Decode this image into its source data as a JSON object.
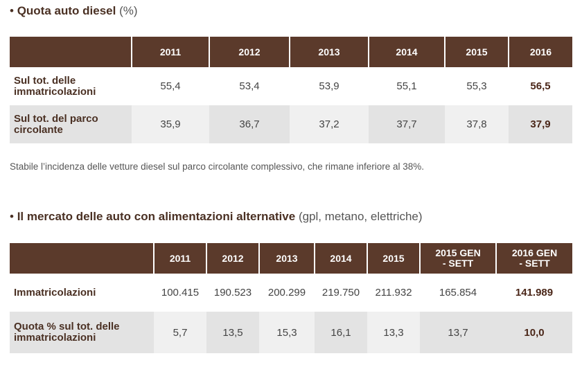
{
  "diesel": {
    "title_bold": "Quota auto diesel",
    "title_light": "(%)",
    "years": [
      "2011",
      "2012",
      "2013",
      "2014",
      "2015",
      "2016"
    ],
    "rows": [
      {
        "label": "Sul tot. delle immatricolazioni",
        "values": [
          "55,4",
          "53,4",
          "53,9",
          "55,1",
          "55,3",
          "56,5"
        ]
      },
      {
        "label": "Sul tot. del parco circolante",
        "values": [
          "35,9",
          "36,7",
          "37,2",
          "37,7",
          "37,8",
          "37,9"
        ]
      }
    ],
    "note": "Stabile l’incidenza delle vetture diesel sul parco circolante complessivo, che rimane inferiore al 38%."
  },
  "alt": {
    "title_bold": "Il mercato delle auto con alimentazioni alternative",
    "title_light": "(gpl, metano, elettriche)",
    "years": [
      "2011",
      "2012",
      "2013",
      "2014",
      "2015",
      "2015 GEN - SETT",
      "2016 GEN - SETT"
    ],
    "rows": [
      {
        "label": "Immatricolazioni",
        "values": [
          "100.415",
          "190.523",
          "200.299",
          "219.750",
          "211.932",
          "165.854",
          "141.989"
        ]
      },
      {
        "label": "Quota % sul tot. delle immatricolazioni",
        "values": [
          "5,7",
          "13,5",
          "15,3",
          "16,1",
          "13,3",
          "13,7",
          "10,0"
        ]
      }
    ]
  }
}
